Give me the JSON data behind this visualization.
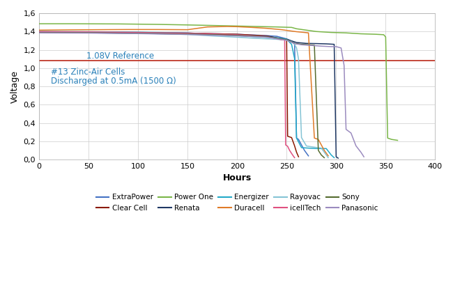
{
  "xlabel": "Hours",
  "ylabel": "Voltage",
  "xlim": [
    0,
    400
  ],
  "ylim": [
    0.0,
    1.6
  ],
  "yticks": [
    0.0,
    0.2,
    0.4,
    0.6,
    0.8,
    1.0,
    1.2,
    1.4,
    1.6
  ],
  "ytick_labels": [
    "0,0",
    "0,2",
    "0,4",
    "0,6",
    "0,8",
    "1,0",
    "1,2",
    "1,4",
    "1,6"
  ],
  "xticks": [
    0,
    50,
    100,
    150,
    200,
    250,
    300,
    350,
    400
  ],
  "reference_voltage": 1.08,
  "reference_label": "1.08V Reference",
  "reference_color": "#c0392b",
  "annotation_line1": "#13 Zinc-Air Cells",
  "annotation_line2": "Discharged at 0.5mA (1500 Ω)",
  "annotation_color": "#2980b9",
  "background_color": "#ffffff",
  "grid_color": "#cccccc",
  "series": {
    "ExtraPower": {
      "color": "#4472c4",
      "points": [
        [
          0,
          1.395
        ],
        [
          50,
          1.393
        ],
        [
          100,
          1.388
        ],
        [
          150,
          1.382
        ],
        [
          200,
          1.37
        ],
        [
          230,
          1.355
        ],
        [
          240,
          1.348
        ],
        [
          250,
          1.32
        ],
        [
          255,
          1.295
        ],
        [
          258,
          1.27
        ],
        [
          260,
          0.235
        ],
        [
          262,
          0.22
        ],
        [
          268,
          0.1
        ],
        [
          272,
          0.04
        ]
      ]
    },
    "Clear Cell": {
      "color": "#8b1a00",
      "points": [
        [
          0,
          1.397
        ],
        [
          50,
          1.395
        ],
        [
          100,
          1.39
        ],
        [
          150,
          1.383
        ],
        [
          200,
          1.37
        ],
        [
          230,
          1.352
        ],
        [
          248,
          1.31
        ],
        [
          250,
          1.31
        ],
        [
          251,
          0.255
        ],
        [
          255,
          0.24
        ],
        [
          258,
          0.15
        ],
        [
          260,
          0.08
        ],
        [
          262,
          0.03
        ]
      ]
    },
    "Power One": {
      "color": "#7ab648",
      "points": [
        [
          0,
          1.485
        ],
        [
          30,
          1.485
        ],
        [
          80,
          1.483
        ],
        [
          120,
          1.478
        ],
        [
          150,
          1.472
        ],
        [
          180,
          1.465
        ],
        [
          200,
          1.46
        ],
        [
          220,
          1.455
        ],
        [
          240,
          1.45
        ],
        [
          255,
          1.445
        ],
        [
          260,
          1.43
        ],
        [
          270,
          1.415
        ],
        [
          280,
          1.4
        ],
        [
          295,
          1.39
        ],
        [
          310,
          1.385
        ],
        [
          325,
          1.375
        ],
        [
          340,
          1.37
        ],
        [
          348,
          1.365
        ],
        [
          350,
          1.34
        ],
        [
          352,
          0.235
        ],
        [
          356,
          0.22
        ],
        [
          362,
          0.21
        ]
      ]
    },
    "Renata": {
      "color": "#1f3864",
      "points": [
        [
          0,
          1.39
        ],
        [
          50,
          1.388
        ],
        [
          100,
          1.382
        ],
        [
          150,
          1.375
        ],
        [
          200,
          1.362
        ],
        [
          230,
          1.348
        ],
        [
          250,
          1.315
        ],
        [
          260,
          1.28
        ],
        [
          270,
          1.27
        ],
        [
          280,
          1.268
        ],
        [
          290,
          1.265
        ],
        [
          295,
          1.262
        ],
        [
          298,
          1.26
        ],
        [
          300,
          0.03
        ],
        [
          302,
          0.015
        ]
      ]
    },
    "Energizer": {
      "color": "#23a9c8",
      "points": [
        [
          0,
          1.4
        ],
        [
          50,
          1.398
        ],
        [
          100,
          1.393
        ],
        [
          150,
          1.385
        ],
        [
          175,
          1.368
        ],
        [
          200,
          1.355
        ],
        [
          220,
          1.342
        ],
        [
          240,
          1.33
        ],
        [
          250,
          1.315
        ],
        [
          255,
          1.26
        ],
        [
          258,
          1.105
        ],
        [
          260,
          0.235
        ],
        [
          265,
          0.13
        ],
        [
          272,
          0.125
        ],
        [
          280,
          0.12
        ],
        [
          290,
          0.12
        ],
        [
          295,
          0.05
        ],
        [
          298,
          0.02
        ]
      ]
    },
    "Duracell": {
      "color": "#e07b28",
      "points": [
        [
          0,
          1.415
        ],
        [
          30,
          1.418
        ],
        [
          60,
          1.42
        ],
        [
          90,
          1.422
        ],
        [
          120,
          1.422
        ],
        [
          150,
          1.42
        ],
        [
          170,
          1.45
        ],
        [
          190,
          1.455
        ],
        [
          200,
          1.453
        ],
        [
          215,
          1.445
        ],
        [
          230,
          1.435
        ],
        [
          245,
          1.42
        ],
        [
          255,
          1.405
        ],
        [
          260,
          1.398
        ],
        [
          268,
          1.39
        ],
        [
          272,
          1.385
        ],
        [
          278,
          0.235
        ],
        [
          282,
          0.22
        ],
        [
          288,
          0.1
        ],
        [
          292,
          0.04
        ]
      ]
    },
    "Rayovac": {
      "color": "#85c4d5",
      "points": [
        [
          0,
          1.388
        ],
        [
          50,
          1.386
        ],
        [
          100,
          1.38
        ],
        [
          150,
          1.368
        ],
        [
          175,
          1.352
        ],
        [
          200,
          1.338
        ],
        [
          220,
          1.325
        ],
        [
          240,
          1.315
        ],
        [
          250,
          1.305
        ],
        [
          255,
          1.29
        ],
        [
          258,
          1.26
        ],
        [
          260,
          1.22
        ],
        [
          262,
          1.1
        ],
        [
          265,
          0.24
        ],
        [
          270,
          0.148
        ],
        [
          278,
          0.135
        ],
        [
          285,
          0.125
        ],
        [
          290,
          0.05
        ],
        [
          292,
          0.02
        ]
      ]
    },
    "icellTech": {
      "color": "#e05080",
      "points": [
        [
          0,
          1.398
        ],
        [
          50,
          1.396
        ],
        [
          100,
          1.39
        ],
        [
          150,
          1.382
        ],
        [
          200,
          1.365
        ],
        [
          230,
          1.345
        ],
        [
          245,
          1.31
        ],
        [
          248,
          1.31
        ],
        [
          249,
          0.16
        ],
        [
          251,
          0.145
        ],
        [
          253,
          0.1
        ],
        [
          256,
          0.05
        ],
        [
          258,
          0.02
        ]
      ]
    },
    "Sony": {
      "color": "#556b2f",
      "points": [
        [
          0,
          1.388
        ],
        [
          50,
          1.386
        ],
        [
          100,
          1.38
        ],
        [
          150,
          1.372
        ],
        [
          200,
          1.358
        ],
        [
          230,
          1.342
        ],
        [
          250,
          1.31
        ],
        [
          258,
          1.27
        ],
        [
          265,
          1.26
        ],
        [
          272,
          1.255
        ],
        [
          278,
          1.25
        ],
        [
          282,
          0.1
        ],
        [
          285,
          0.05
        ],
        [
          288,
          0.02
        ]
      ]
    },
    "Panasonic": {
      "color": "#9b8bbf",
      "points": [
        [
          0,
          1.385
        ],
        [
          50,
          1.383
        ],
        [
          100,
          1.377
        ],
        [
          150,
          1.368
        ],
        [
          200,
          1.352
        ],
        [
          230,
          1.338
        ],
        [
          250,
          1.305
        ],
        [
          258,
          1.268
        ],
        [
          265,
          1.255
        ],
        [
          275,
          1.248
        ],
        [
          285,
          1.24
        ],
        [
          295,
          1.235
        ],
        [
          300,
          1.235
        ],
        [
          305,
          1.22
        ],
        [
          308,
          1.03
        ],
        [
          310,
          0.33
        ],
        [
          315,
          0.29
        ],
        [
          320,
          0.15
        ],
        [
          325,
          0.08
        ],
        [
          328,
          0.03
        ]
      ]
    }
  },
  "legend_row1": [
    "ExtraPower",
    "Clear Cell",
    "Power One",
    "Renata",
    "Energizer"
  ],
  "legend_row2": [
    "Duracell",
    "Rayovac",
    "icellTech",
    "Sony",
    "Panasonic"
  ]
}
